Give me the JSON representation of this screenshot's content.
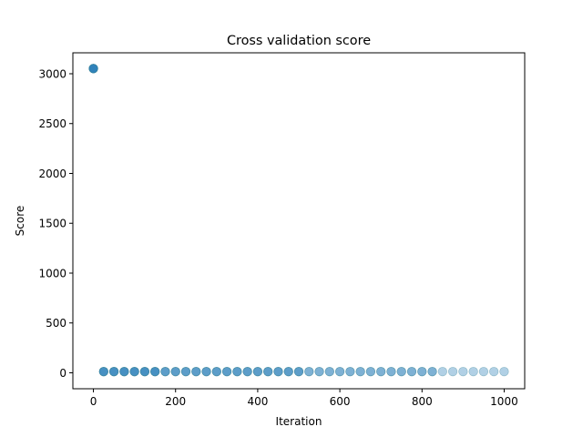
{
  "chart_data": {
    "type": "scatter",
    "title": "Cross validation score",
    "xlabel": "Iteration",
    "ylabel": "Score",
    "xlim": [
      -50,
      1050
    ],
    "ylim": [
      -160,
      3210
    ],
    "xticks": [
      0,
      200,
      400,
      600,
      800,
      1000
    ],
    "yticks": [
      0,
      500,
      1000,
      1500,
      2000,
      2500,
      3000
    ],
    "grid": false,
    "legend": "none",
    "marker_color": "#1f77b4",
    "overlap_color": "#3b8597",
    "series": [
      {
        "x": [
          0,
          25,
          50,
          75,
          100,
          125,
          150,
          175,
          200,
          225,
          250,
          275,
          300,
          325,
          350,
          375,
          400,
          425,
          450,
          475,
          500,
          525,
          550,
          575,
          600,
          625,
          650,
          675,
          700,
          725,
          750,
          775,
          800,
          825,
          850,
          875,
          900,
          925,
          950,
          975,
          1000
        ],
        "y": [
          3052,
          12,
          12,
          12,
          12,
          12,
          12,
          12,
          12,
          12,
          12,
          12,
          12,
          12,
          12,
          12,
          12,
          12,
          12,
          12,
          12,
          12,
          12,
          12,
          12,
          12,
          12,
          12,
          12,
          12,
          12,
          12,
          12,
          12,
          12,
          12,
          12,
          12,
          12,
          12,
          12
        ]
      }
    ]
  }
}
